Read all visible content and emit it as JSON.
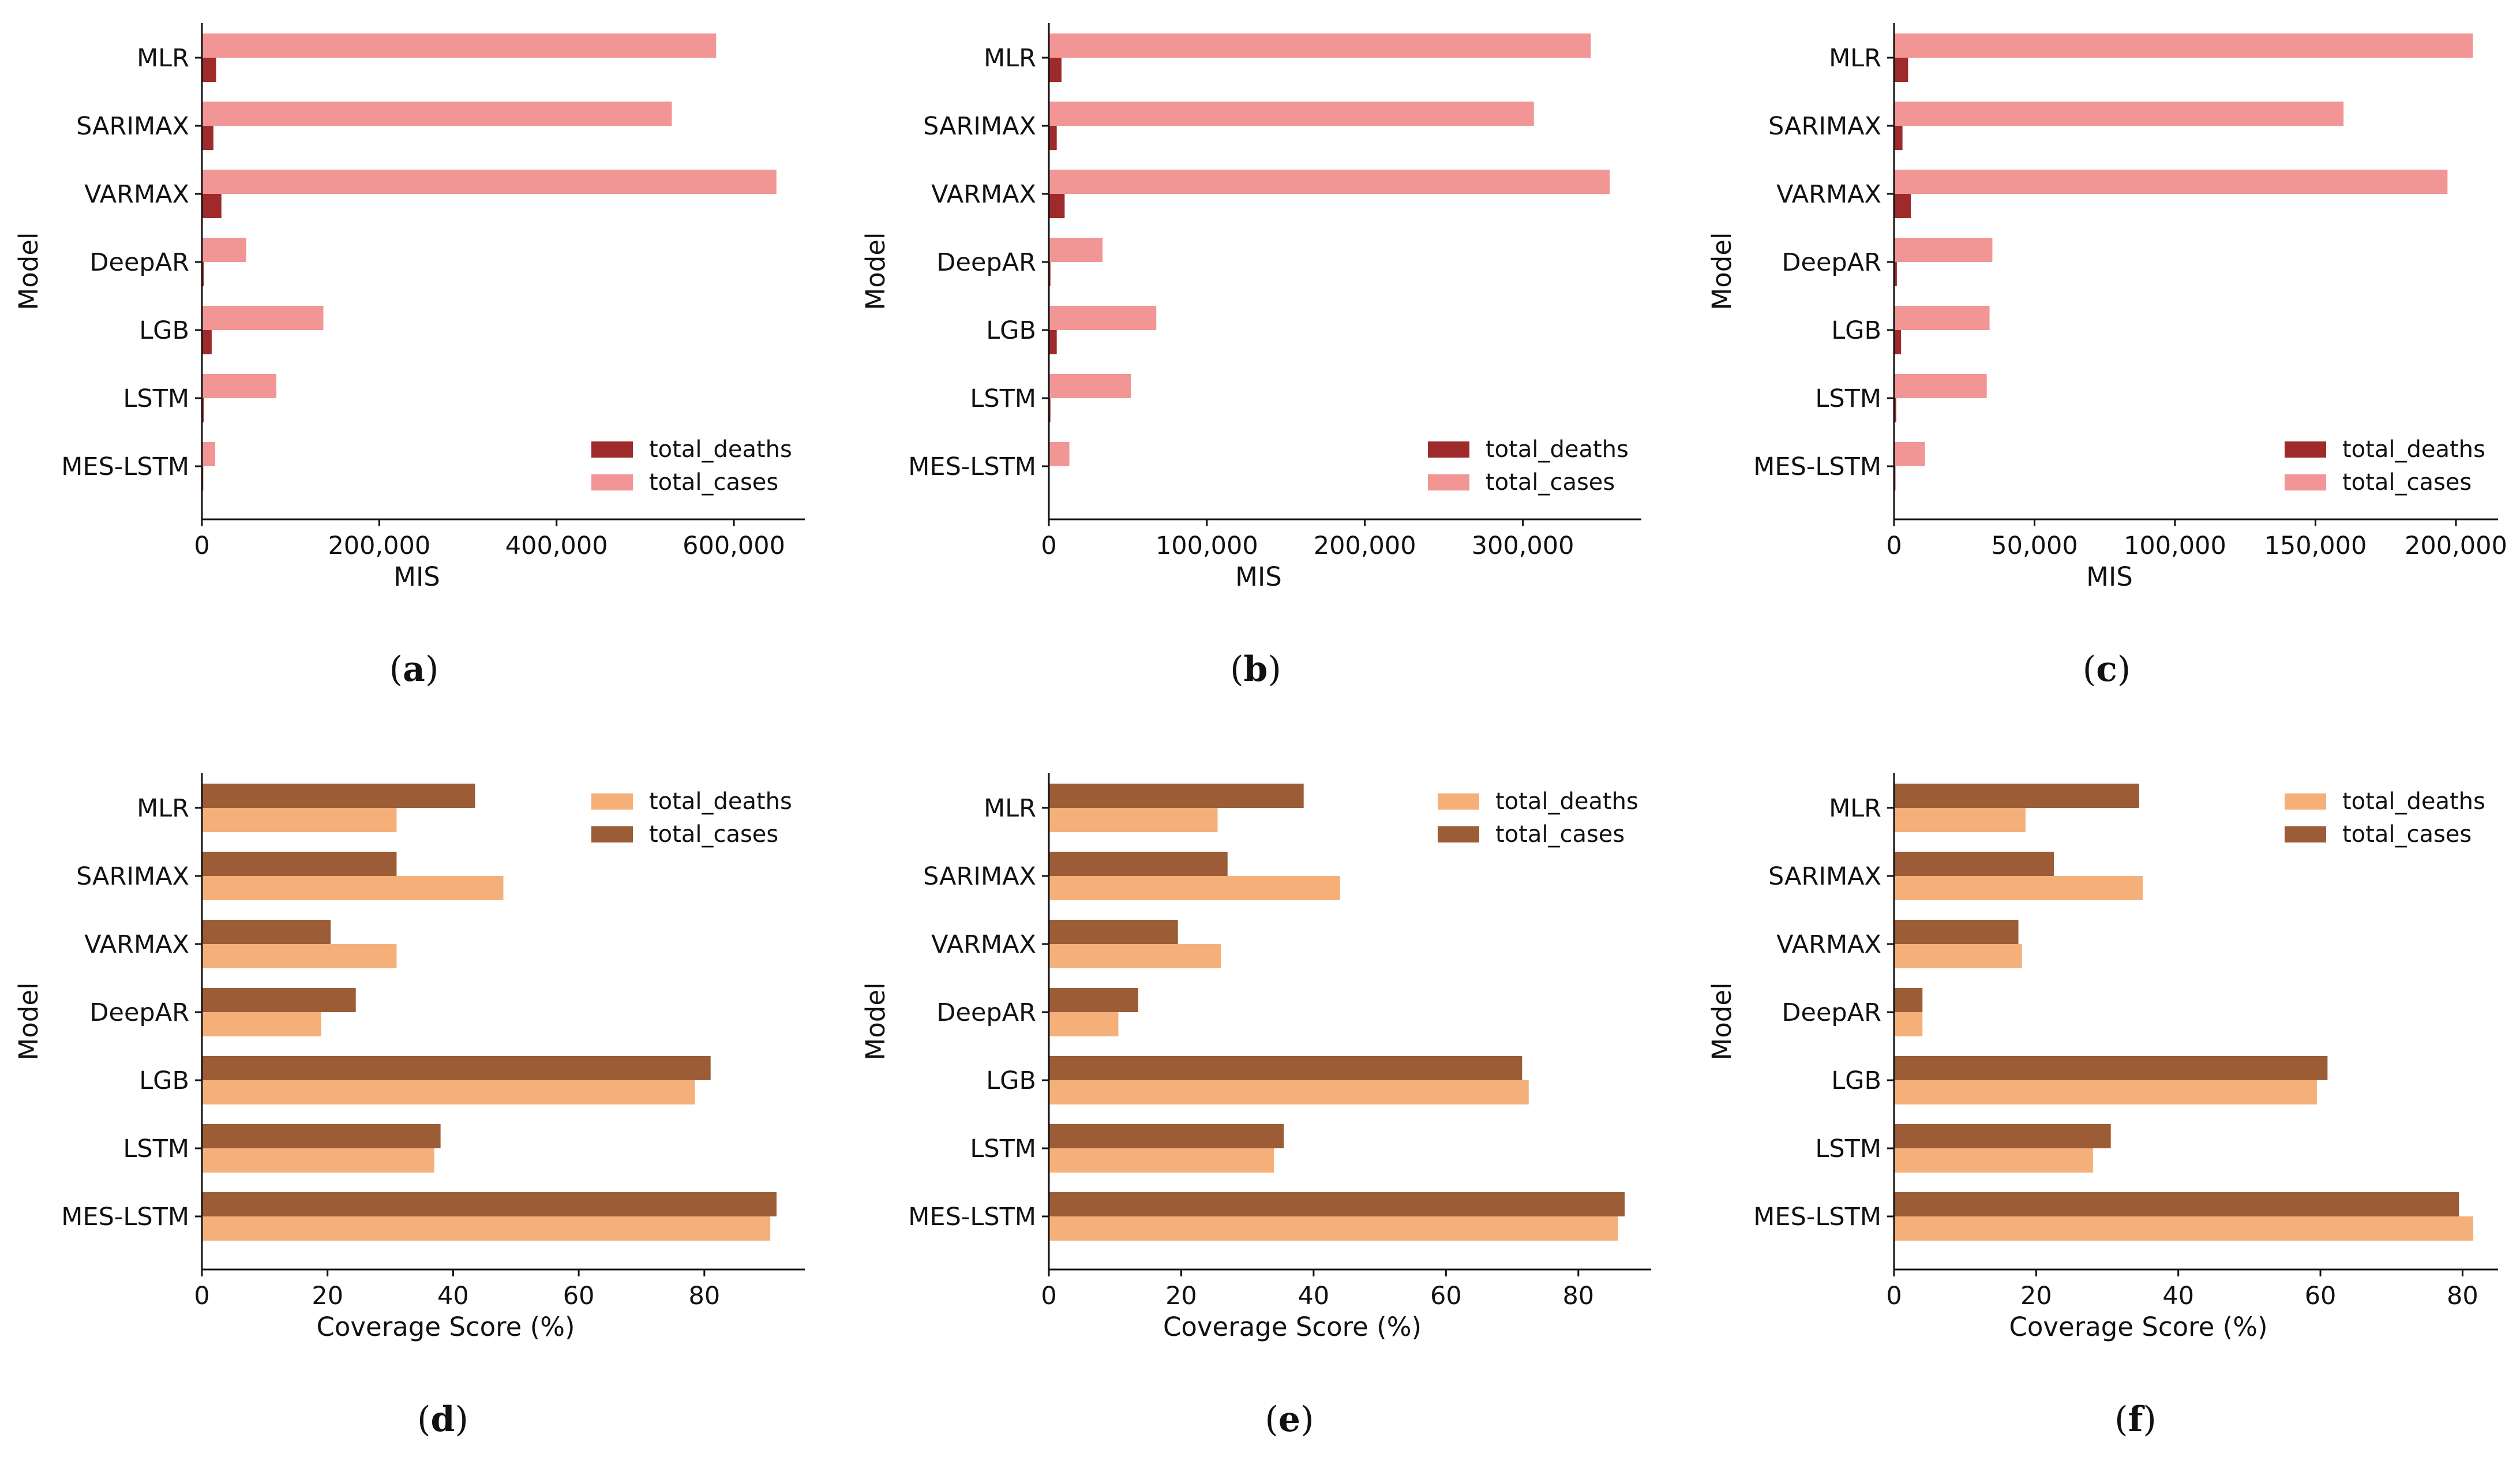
{
  "colors": {
    "deaths_mis": "#9e2a2b",
    "cases_mis": "#f29595",
    "deaths_cov": "#f5b07a",
    "cases_cov": "#9b5c36"
  },
  "chart_data": [
    {
      "type": "bar",
      "orientation": "horizontal",
      "panel": "a",
      "categories": [
        "MLR",
        "SARIMAX",
        "VARMAX",
        "DeepAR",
        "LGB",
        "LSTM",
        "MES-LSTM"
      ],
      "series": [
        {
          "name": "total_deaths",
          "values": [
            16000,
            13000,
            22000,
            2000,
            11000,
            2000,
            1500
          ]
        },
        {
          "name": "total_cases",
          "values": [
            580000,
            530000,
            648000,
            50000,
            137000,
            84000,
            15000
          ]
        }
      ],
      "xlabel": "MIS",
      "ylabel": "Model",
      "xlim": [
        0,
        680000
      ],
      "ticks": [
        0,
        200000,
        400000,
        600000
      ],
      "tick_labels": [
        "0",
        "200,000",
        "400,000",
        "600,000"
      ],
      "legend_order": [
        "total_deaths",
        "total_cases"
      ],
      "legend": "bottom-right",
      "panel_label": "a"
    },
    {
      "type": "bar",
      "orientation": "horizontal",
      "panel": "b",
      "categories": [
        "MLR",
        "SARIMAX",
        "VARMAX",
        "DeepAR",
        "LGB",
        "LSTM",
        "MES-LSTM"
      ],
      "series": [
        {
          "name": "total_deaths",
          "values": [
            8000,
            5000,
            10000,
            1000,
            5000,
            1000,
            500
          ]
        },
        {
          "name": "total_cases",
          "values": [
            343000,
            307000,
            355000,
            34000,
            68000,
            52000,
            13000
          ]
        }
      ],
      "xlabel": "MIS",
      "ylabel": "Model",
      "xlim": [
        0,
        375000
      ],
      "ticks": [
        0,
        100000,
        200000,
        300000
      ],
      "tick_labels": [
        "0",
        "100,000",
        "200,000",
        "300,000"
      ],
      "legend_order": [
        "total_deaths",
        "total_cases"
      ],
      "legend": "bottom-right",
      "panel_label": "b"
    },
    {
      "type": "bar",
      "orientation": "horizontal",
      "panel": "c",
      "categories": [
        "MLR",
        "SARIMAX",
        "VARMAX",
        "DeepAR",
        "LGB",
        "LSTM",
        "MES-LSTM"
      ],
      "series": [
        {
          "name": "total_deaths",
          "values": [
            5000,
            3000,
            6000,
            1000,
            2500,
            800,
            500
          ]
        },
        {
          "name": "total_cases",
          "values": [
            206000,
            160000,
            197000,
            35000,
            34000,
            33000,
            11000
          ]
        }
      ],
      "xlabel": "MIS",
      "ylabel": "Model",
      "xlim": [
        0,
        215000
      ],
      "ticks": [
        0,
        50000,
        100000,
        150000,
        200000
      ],
      "tick_labels": [
        "0",
        "50,000",
        "100,000",
        "150,000",
        "200,000"
      ],
      "legend_order": [
        "total_deaths",
        "total_cases"
      ],
      "legend": "bottom-right",
      "panel_label": "c"
    },
    {
      "type": "bar",
      "orientation": "horizontal",
      "panel": "d",
      "categories": [
        "MLR",
        "SARIMAX",
        "VARMAX",
        "DeepAR",
        "LGB",
        "LSTM",
        "MES-LSTM"
      ],
      "series": [
        {
          "name": "total_cases",
          "values": [
            43.5,
            31,
            20.5,
            24.5,
            81,
            38,
            91.5
          ]
        },
        {
          "name": "total_deaths",
          "values": [
            31,
            48,
            31,
            19,
            78.5,
            37,
            90.5
          ]
        }
      ],
      "xlabel": "Coverage Score (%)",
      "ylabel": "Model",
      "xlim": [
        0,
        96
      ],
      "ticks": [
        0,
        20,
        40,
        60,
        80
      ],
      "tick_labels": [
        "0",
        "20",
        "40",
        "60",
        "80"
      ],
      "legend_order": [
        "total_deaths",
        "total_cases"
      ],
      "legend": "top-right",
      "panel_label": "d"
    },
    {
      "type": "bar",
      "orientation": "horizontal",
      "panel": "e",
      "categories": [
        "MLR",
        "SARIMAX",
        "VARMAX",
        "DeepAR",
        "LGB",
        "LSTM",
        "MES-LSTM"
      ],
      "series": [
        {
          "name": "total_cases",
          "values": [
            38.5,
            27,
            19.5,
            13.5,
            71.5,
            35.5,
            87
          ]
        },
        {
          "name": "total_deaths",
          "values": [
            25.5,
            44,
            26,
            10.5,
            72.5,
            34,
            86
          ]
        }
      ],
      "xlabel": "Coverage Score (%)",
      "ylabel": "Model",
      "xlim": [
        0,
        91
      ],
      "ticks": [
        0,
        20,
        40,
        60,
        80
      ],
      "tick_labels": [
        "0",
        "20",
        "40",
        "60",
        "80"
      ],
      "legend_order": [
        "total_deaths",
        "total_cases"
      ],
      "legend": "top-right",
      "panel_label": "e"
    },
    {
      "type": "bar",
      "orientation": "horizontal",
      "panel": "f",
      "categories": [
        "MLR",
        "SARIMAX",
        "VARMAX",
        "DeepAR",
        "LGB",
        "LSTM",
        "MES-LSTM"
      ],
      "series": [
        {
          "name": "total_cases",
          "values": [
            34.5,
            22.5,
            17.5,
            4,
            61,
            30.5,
            79.5
          ]
        },
        {
          "name": "total_deaths",
          "values": [
            18.5,
            35,
            18,
            4,
            59.5,
            28,
            81.5
          ]
        }
      ],
      "xlabel": "Coverage Score (%)",
      "ylabel": "Model",
      "xlim": [
        0,
        85
      ],
      "ticks": [
        0,
        20,
        40,
        60,
        80
      ],
      "tick_labels": [
        "0",
        "20",
        "40",
        "60",
        "80"
      ],
      "legend_order": [
        "total_deaths",
        "total_cases"
      ],
      "legend": "top-right",
      "panel_label": "f"
    }
  ]
}
